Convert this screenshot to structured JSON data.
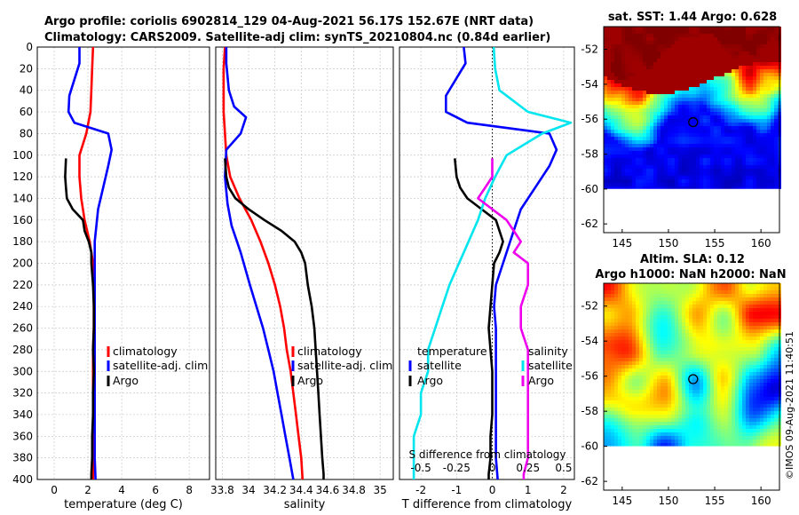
{
  "titles": {
    "line1": "Argo profile: coriolis 6902814_129 04-Aug-2021 56.17S 152.67E (NRT data)",
    "line2": "Climatology: CARS2009. Satellite-adj clim: synTS_20210804.nc (0.84d earlier)",
    "map_sst": "sat. SST: 1.44 Argo: 0.628",
    "map_sla_1": "Altim. SLA: 0.12",
    "map_sla_2": "Argo h1000: NaN h2000: NaN",
    "copyright": "©IMOS 09-Aug-2021 11:40:51"
  },
  "colors": {
    "climatology": "#ff0000",
    "satellite": "#0000ff",
    "argo": "#000000",
    "t_diff_satellite": "#0000ff",
    "s_diff_satellite": "#00e5ee",
    "s_diff_argo": "#ee00ee"
  },
  "chart_data": [
    {
      "type": "line",
      "name": "temperature-panel",
      "xlabel": "temperature (deg C)",
      "ylabel": "",
      "xlim": [
        -1,
        9.2
      ],
      "ylim": [
        400,
        0
      ],
      "xticks": [
        "0",
        "2",
        "4",
        "6",
        "8"
      ],
      "xtick_values": [
        0,
        2,
        4,
        6,
        8
      ],
      "yticks": [
        "0",
        "20",
        "40",
        "60",
        "80",
        "100",
        "120",
        "140",
        "160",
        "180",
        "200",
        "220",
        "240",
        "260",
        "280",
        "300",
        "320",
        "340",
        "360",
        "380",
        "400"
      ],
      "legend": [
        "climatology",
        "satellite-adj. clim",
        "Argo"
      ],
      "series": [
        {
          "name": "climatology",
          "color": "climatology",
          "x": [
            2.3,
            2.25,
            2.2,
            2.15,
            1.9,
            1.5,
            1.5,
            1.6,
            1.8,
            2.1,
            2.3,
            2.35,
            2.35,
            2.35,
            2.3,
            2.3,
            2.3,
            2.3,
            2.3,
            2.3,
            2.3
          ],
          "y": [
            0,
            20,
            40,
            60,
            80,
            100,
            120,
            140,
            160,
            180,
            200,
            220,
            240,
            260,
            280,
            300,
            320,
            340,
            360,
            380,
            400
          ]
        },
        {
          "name": "satellite-adj. clim",
          "color": "satellite",
          "x": [
            1.5,
            1.5,
            0.9,
            0.85,
            1.2,
            3.2,
            3.4,
            3.2,
            2.9,
            2.6,
            2.4,
            2.4,
            2.4,
            2.4,
            2.4,
            2.4,
            2.4,
            2.4,
            2.4,
            2.4,
            2.45
          ],
          "y": [
            0,
            15,
            45,
            60,
            70,
            80,
            95,
            110,
            130,
            150,
            180,
            220,
            240,
            260,
            280,
            300,
            320,
            340,
            360,
            380,
            400
          ]
        },
        {
          "name": "Argo",
          "color": "argo",
          "x": [
            0.7,
            0.65,
            0.7,
            0.75,
            1.1,
            1.7,
            1.8,
            2.05,
            2.2,
            2.2,
            2.3,
            2.35,
            2.35,
            2.3,
            2.35,
            2.3,
            2.3,
            2.25,
            2.25,
            2.2,
            2.2
          ],
          "y": [
            103,
            120,
            130,
            140,
            150,
            160,
            170,
            180,
            190,
            200,
            220,
            240,
            260,
            280,
            300,
            320,
            340,
            360,
            380,
            395,
            400
          ]
        }
      ]
    },
    {
      "type": "line",
      "name": "salinity-panel",
      "xlabel": "salinity",
      "xlim": [
        33.75,
        35.1
      ],
      "ylim": [
        400,
        0
      ],
      "xticks": [
        "33.8",
        "34",
        "34.2",
        "34.4",
        "34.6",
        "34.8",
        "35"
      ],
      "xtick_values": [
        33.8,
        34.0,
        34.2,
        34.4,
        34.6,
        34.8,
        35.0
      ],
      "legend": [
        "climatology",
        "satellite-adj. clim",
        "Argo"
      ],
      "series": [
        {
          "name": "climatology",
          "color": "climatology",
          "x": [
            33.82,
            33.81,
            33.81,
            33.81,
            33.82,
            33.83,
            33.86,
            33.93,
            34.02,
            34.09,
            34.15,
            34.2,
            34.24,
            34.27,
            34.29,
            34.32,
            34.34,
            34.36,
            34.38,
            34.4,
            34.41
          ],
          "y": [
            0,
            20,
            40,
            60,
            80,
            100,
            120,
            140,
            160,
            180,
            200,
            220,
            240,
            260,
            280,
            300,
            320,
            340,
            360,
            380,
            400
          ]
        },
        {
          "name": "satellite-adj. clim",
          "color": "satellite",
          "x": [
            33.83,
            33.83,
            33.85,
            33.89,
            33.98,
            33.94,
            33.83,
            33.82,
            33.84,
            33.87,
            33.94,
            34.01,
            34.06,
            34.11,
            34.15,
            34.19,
            34.22,
            34.25,
            34.28,
            34.31,
            34.34
          ],
          "y": [
            0,
            15,
            40,
            55,
            65,
            80,
            95,
            120,
            145,
            165,
            190,
            220,
            240,
            260,
            280,
            300,
            320,
            340,
            360,
            380,
            400
          ]
        },
        {
          "name": "Argo",
          "color": "argo",
          "x": [
            33.82,
            33.83,
            33.85,
            33.9,
            34.0,
            34.12,
            34.25,
            34.35,
            34.4,
            34.43,
            34.45,
            34.48,
            34.5,
            34.51,
            34.52,
            34.53,
            34.54,
            34.55,
            34.56,
            34.57,
            34.57
          ],
          "y": [
            103,
            120,
            130,
            140,
            150,
            160,
            170,
            180,
            190,
            200,
            220,
            240,
            260,
            280,
            300,
            320,
            340,
            360,
            380,
            395,
            400
          ]
        }
      ]
    },
    {
      "type": "line",
      "name": "difference-panel",
      "xlabel": "T difference from climatology",
      "xlabel_top": "S difference from climatology",
      "xlim": [
        -2.6,
        2.3
      ],
      "ylim": [
        400,
        0
      ],
      "xticks": [
        "-2",
        "-1",
        "0",
        "1",
        "2"
      ],
      "xtick_values": [
        -2,
        -1,
        0,
        1,
        2
      ],
      "s_xticks": [
        "-0.5",
        "-0.25",
        "0",
        "0.25",
        "0.5"
      ],
      "s_xtick_values": [
        -0.5,
        -0.25,
        0,
        0.25,
        0.5
      ],
      "legend_left": [
        "temperature",
        "satellite",
        "Argo"
      ],
      "legend_right": [
        "salinity",
        "satellite",
        "Argo"
      ],
      "series": [
        {
          "name": "T satellite",
          "color": "t_diff_satellite",
          "x": [
            -0.8,
            -0.75,
            -1.3,
            -1.3,
            -0.7,
            1.6,
            1.8,
            1.6,
            1.2,
            0.8,
            0.5,
            0.1,
            0.05,
            0.1,
            0.1,
            0.1,
            0.1,
            0.1,
            0.1,
            0.1,
            0.15
          ],
          "y": [
            0,
            15,
            45,
            60,
            70,
            80,
            95,
            110,
            130,
            150,
            180,
            220,
            240,
            260,
            280,
            300,
            320,
            340,
            360,
            380,
            400
          ]
        },
        {
          "name": "T Argo",
          "color": "argo",
          "x": [
            -1.05,
            -1.0,
            -0.9,
            -0.7,
            -0.3,
            0.1,
            0.2,
            0.3,
            0.2,
            0.05,
            0.0,
            -0.05,
            -0.1,
            -0.05,
            0.0,
            0.0,
            0.0,
            -0.05,
            -0.05,
            -0.1,
            -0.1
          ],
          "y": [
            103,
            120,
            130,
            140,
            150,
            160,
            170,
            180,
            190,
            200,
            220,
            240,
            260,
            280,
            300,
            320,
            340,
            360,
            380,
            395,
            400
          ]
        },
        {
          "name": "S satellite",
          "color": "s_diff_satellite",
          "x": [
            0.01,
            0.02,
            0.05,
            0.25,
            0.55,
            0.35,
            0.1,
            0.02,
            -0.05,
            -0.1,
            -0.2,
            -0.3,
            -0.35,
            -0.4,
            -0.45,
            -0.45,
            -0.5,
            -0.5,
            -0.55,
            -0.55,
            -0.55
          ],
          "y": [
            0,
            20,
            40,
            60,
            70,
            80,
            100,
            120,
            140,
            160,
            190,
            220,
            240,
            260,
            280,
            300,
            320,
            340,
            360,
            380,
            400
          ]
        },
        {
          "name": "S Argo",
          "color": "s_diff_argo",
          "x": [
            0.0,
            0.0,
            -0.05,
            -0.1,
            0.0,
            0.1,
            0.15,
            0.2,
            0.15,
            0.25,
            0.25,
            0.2,
            0.2,
            0.25,
            0.25,
            0.25,
            0.25,
            0.25,
            0.25,
            0.22,
            0.22
          ],
          "y": [
            103,
            120,
            130,
            140,
            150,
            160,
            170,
            180,
            190,
            200,
            220,
            240,
            260,
            280,
            300,
            320,
            340,
            360,
            380,
            395,
            400
          ]
        }
      ]
    },
    {
      "type": "heatmap",
      "name": "sst-map",
      "title": "sat. SST: 1.44 Argo: 0.628",
      "xlim": [
        143,
        162
      ],
      "ylim": [
        -62.5,
        -50.7
      ],
      "data_ylim": [
        -60,
        -50.7
      ],
      "xticks": [
        "145",
        "150",
        "155",
        "160"
      ],
      "xtick_values": [
        145,
        150,
        155,
        160
      ],
      "yticks": [
        "-52",
        "-54",
        "-56",
        "-58",
        "-60",
        "-62"
      ],
      "ytick_values": [
        -52,
        -54,
        -56,
        -58,
        -60,
        -62
      ],
      "marker": {
        "lon": 152.67,
        "lat": -56.17
      }
    },
    {
      "type": "heatmap",
      "name": "sla-map",
      "title": "Altim. SLA: 0.12",
      "subtitle": "Argo h1000: NaN h2000: NaN",
      "xlim": [
        143,
        162
      ],
      "ylim": [
        -62.5,
        -50.7
      ],
      "data_ylim": [
        -60,
        -50.7
      ],
      "xticks": [
        "145",
        "150",
        "155",
        "160"
      ],
      "xtick_values": [
        145,
        150,
        155,
        160
      ],
      "yticks": [
        "-52",
        "-54",
        "-56",
        "-58",
        "-60",
        "-62"
      ],
      "ytick_values": [
        -52,
        -54,
        -56,
        -58,
        -60,
        -62
      ],
      "marker": {
        "lon": 152.67,
        "lat": -56.17
      }
    }
  ]
}
